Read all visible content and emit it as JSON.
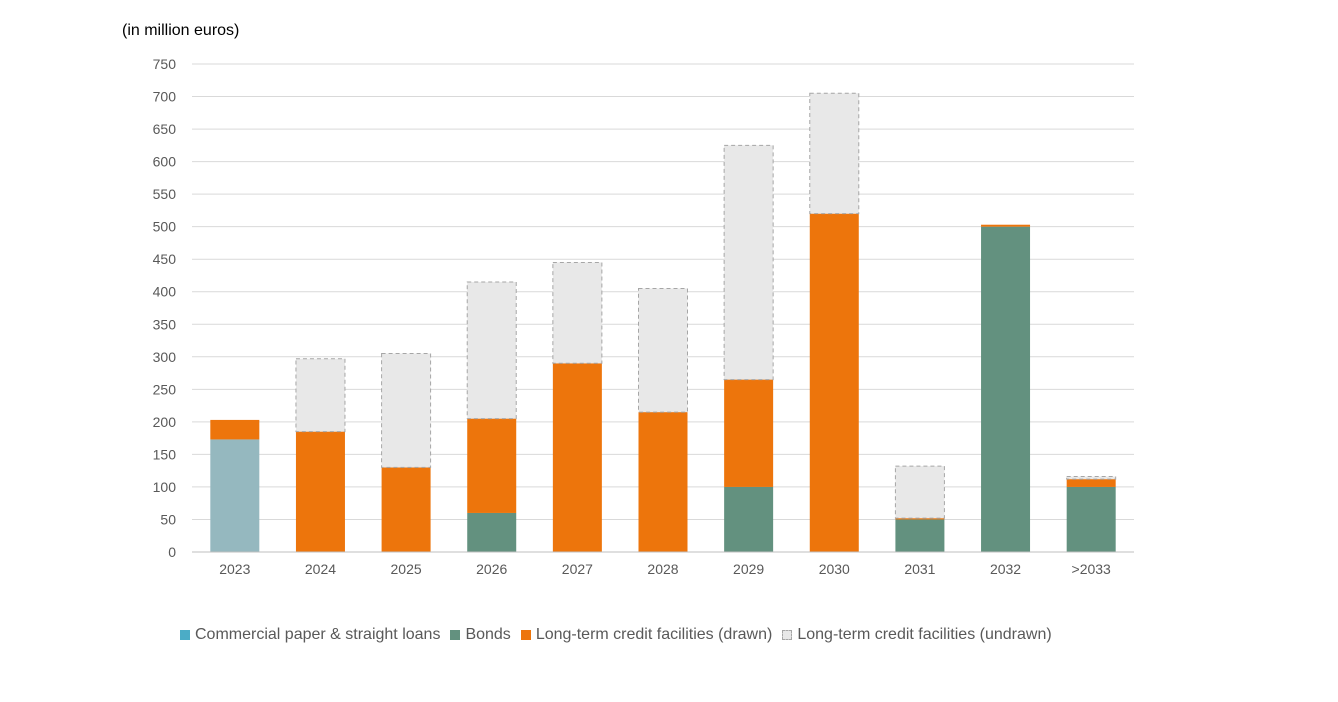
{
  "chart_data": {
    "type": "bar",
    "stacked": true,
    "unit_label": "(in million euros)",
    "categories": [
      "2023",
      "2024",
      "2025",
      "2026",
      "2027",
      "2028",
      "2029",
      "2030",
      "2031",
      "2032",
      ">2033"
    ],
    "series": [
      {
        "key": "cp",
        "name": "Commercial paper & straight loans",
        "color": "#95b8bf",
        "legend_color": "#4bacc6",
        "values": [
          173,
          0,
          0,
          0,
          0,
          0,
          0,
          0,
          0,
          0,
          0
        ]
      },
      {
        "key": "bonds",
        "name": "Bonds",
        "color": "#63917f",
        "values": [
          0,
          0,
          0,
          60,
          0,
          0,
          100,
          0,
          50,
          500,
          100
        ]
      },
      {
        "key": "drawn",
        "name": "Long-term credit facilities (drawn)",
        "color": "#ed750c",
        "values": [
          30,
          185,
          130,
          145,
          290,
          215,
          165,
          520,
          2,
          3,
          12
        ]
      },
      {
        "key": "undrawn",
        "name": "Long-term credit facilities (undrawn)",
        "color": "#e8e8e8",
        "border_color": "#a6a6a6",
        "dashed": true,
        "values": [
          0,
          112,
          175,
          210,
          155,
          190,
          360,
          185,
          80,
          0,
          4
        ]
      }
    ],
    "ylim": [
      0,
      750
    ],
    "yticks": [
      0,
      50,
      100,
      150,
      200,
      250,
      300,
      350,
      400,
      450,
      500,
      550,
      600,
      650,
      700,
      750
    ],
    "grid": true,
    "legend_position": "bottom"
  }
}
